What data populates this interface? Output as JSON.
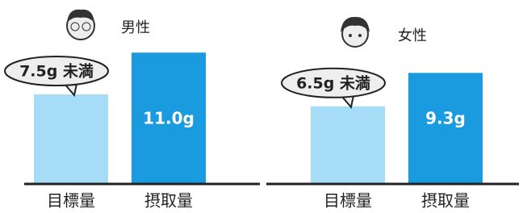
{
  "chart_data": [
    {
      "type": "bar",
      "title": "男性",
      "categories": [
        "目標量",
        "摂取量"
      ],
      "values": [
        7.5,
        11.0
      ],
      "value_labels": [
        "7.5g 未満",
        "11.0g"
      ],
      "colors": [
        "#a6dcf5",
        "#1a9be0"
      ]
    },
    {
      "type": "bar",
      "title": "女性",
      "categories": [
        "目標量",
        "摂取量"
      ],
      "values": [
        6.5,
        9.3
      ],
      "value_labels": [
        "6.5g 未満",
        "9.3g"
      ],
      "colors": [
        "#a6dcf5",
        "#1a9be0"
      ]
    }
  ]
}
